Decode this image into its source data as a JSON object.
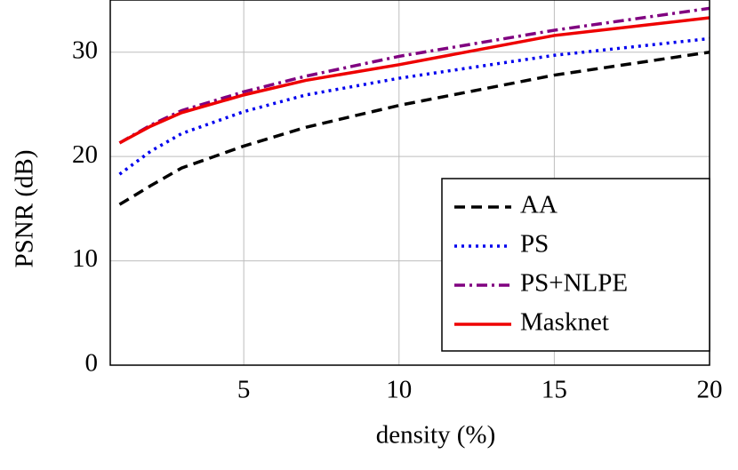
{
  "chart_data": {
    "type": "line",
    "x_label": "density (%)",
    "y_label": "PSNR (dB)",
    "x": [
      1,
      2,
      3,
      5,
      7,
      10,
      15,
      20
    ],
    "series": [
      {
        "name": "AA",
        "color": "#000000",
        "style": "dashed",
        "values": [
          15.4,
          17.2,
          18.9,
          21.0,
          22.8,
          24.9,
          27.8,
          30.0
        ]
      },
      {
        "name": "PS",
        "color": "#0000ee",
        "style": "dotted",
        "values": [
          18.3,
          20.5,
          22.2,
          24.3,
          25.9,
          27.5,
          29.7,
          31.3
        ]
      },
      {
        "name": "PS+NLPE",
        "color": "#800080",
        "style": "dashdot",
        "values": [
          21.3,
          23.0,
          24.4,
          26.2,
          27.7,
          29.6,
          32.1,
          34.2
        ]
      },
      {
        "name": "Masknet",
        "color": "#ee0000",
        "style": "solid",
        "values": [
          21.3,
          22.9,
          24.2,
          25.9,
          27.3,
          28.8,
          31.6,
          33.3
        ]
      }
    ],
    "xlim": [
      0.7,
      20
    ],
    "ylim": [
      0,
      35
    ],
    "xticks": [
      5,
      10,
      15,
      20
    ],
    "yticks": [
      0,
      10,
      20,
      30
    ],
    "grid": true,
    "legend": "lower right"
  }
}
